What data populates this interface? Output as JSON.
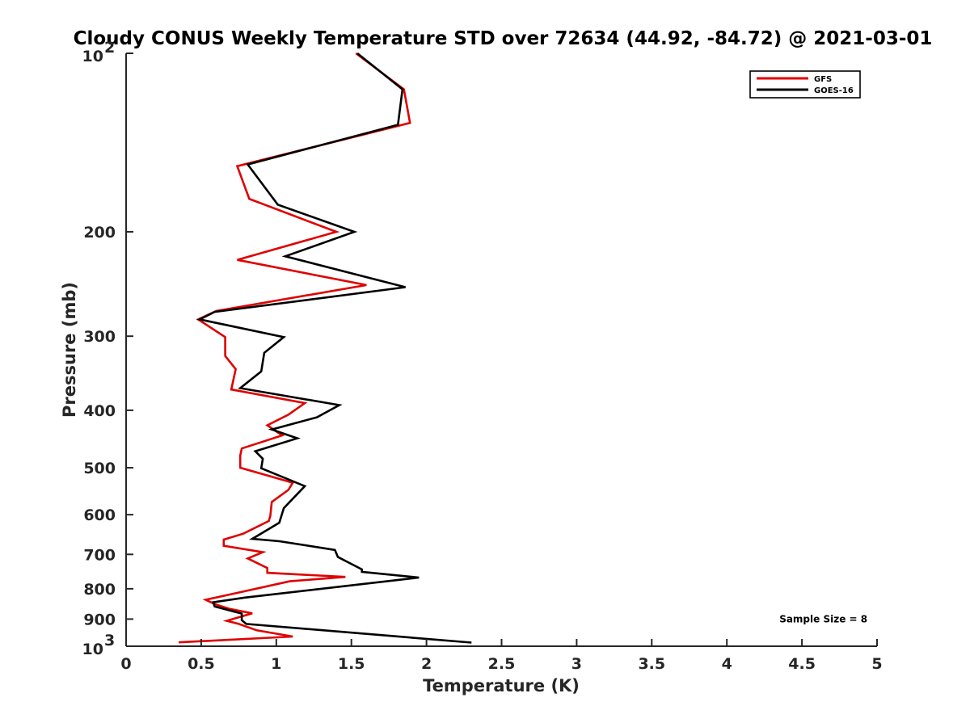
{
  "chart_data": {
    "type": "line",
    "title": "Cloudy CONUS Weekly Temperature STD over 72634 (44.92, -84.72) @ 2021-03-01",
    "xlabel": "Temperature (K)",
    "ylabel": "Pressure (mb)",
    "xlim": [
      0,
      5
    ],
    "ylim": [
      100,
      1000
    ],
    "y_scale": "log",
    "y_reversed": true,
    "x_ticks": [
      0,
      0.5,
      1,
      1.5,
      2,
      2.5,
      3,
      3.5,
      4,
      4.5,
      5
    ],
    "x_tick_labels": [
      "0",
      "0.5",
      "1",
      "1.5",
      "2",
      "2.5",
      "3",
      "3.5",
      "4",
      "4.5",
      "5"
    ],
    "y_ticks": [
      200,
      300,
      400,
      500,
      600,
      700,
      800,
      900
    ],
    "y_tick_labels": [
      "200",
      "300",
      "400",
      "500",
      "600",
      "700",
      "800",
      "900"
    ],
    "y_end_labels": [
      {
        "value": 100,
        "base": "10",
        "exp": "2"
      },
      {
        "value": 1000,
        "base": "10",
        "exp": "3"
      }
    ],
    "grid": false,
    "legend_position": "top-right",
    "series": [
      {
        "name": "GFS",
        "color": "#e00000",
        "points": [
          [
            1.53,
            100
          ],
          [
            1.85,
            115
          ],
          [
            1.89,
            131
          ],
          [
            0.74,
            155
          ],
          [
            0.82,
            176
          ],
          [
            1.4,
            200
          ],
          [
            0.74,
            223
          ],
          [
            1.6,
            246
          ],
          [
            0.6,
            272
          ],
          [
            0.48,
            281
          ],
          [
            0.66,
            301
          ],
          [
            0.66,
            324
          ],
          [
            0.73,
            341
          ],
          [
            0.7,
            369
          ],
          [
            1.19,
            389
          ],
          [
            1.08,
            407
          ],
          [
            0.94,
            424
          ],
          [
            1.04,
            441
          ],
          [
            0.77,
            464
          ],
          [
            0.76,
            477
          ],
          [
            0.76,
            500
          ],
          [
            1.11,
            530
          ],
          [
            1.08,
            545
          ],
          [
            0.97,
            571
          ],
          [
            0.96,
            603
          ],
          [
            0.95,
            615
          ],
          [
            0.78,
            646
          ],
          [
            0.65,
            661
          ],
          [
            0.65,
            677
          ],
          [
            0.91,
            694
          ],
          [
            0.81,
            711
          ],
          [
            0.94,
            738
          ],
          [
            0.94,
            752
          ],
          [
            1.46,
            764
          ],
          [
            1.09,
            777
          ],
          [
            0.73,
            814
          ],
          [
            0.53,
            835
          ],
          [
            0.59,
            849
          ],
          [
            0.69,
            865
          ],
          [
            0.84,
            880
          ],
          [
            0.67,
            906
          ],
          [
            0.75,
            917
          ],
          [
            0.87,
            940
          ],
          [
            1.11,
            963
          ],
          [
            0.35,
            985
          ]
        ]
      },
      {
        "name": "GOES-16",
        "color": "#000000",
        "points": [
          [
            1.54,
            100
          ],
          [
            1.84,
            115
          ],
          [
            1.81,
            132
          ],
          [
            0.81,
            154
          ],
          [
            1.01,
            180
          ],
          [
            1.52,
            200
          ],
          [
            1.06,
            220
          ],
          [
            1.86,
            248
          ],
          [
            0.59,
            273
          ],
          [
            0.49,
            281
          ],
          [
            1.05,
            301
          ],
          [
            0.92,
            320
          ],
          [
            0.9,
            344
          ],
          [
            0.76,
            367
          ],
          [
            1.42,
            392
          ],
          [
            1.27,
            411
          ],
          [
            0.97,
            431
          ],
          [
            1.14,
            446
          ],
          [
            0.86,
            469
          ],
          [
            0.91,
            483
          ],
          [
            0.9,
            501
          ],
          [
            1.19,
            537
          ],
          [
            1.05,
            585
          ],
          [
            1.02,
            619
          ],
          [
            0.84,
            659
          ],
          [
            1.02,
            665
          ],
          [
            1.39,
            688
          ],
          [
            1.41,
            707
          ],
          [
            1.57,
            742
          ],
          [
            1.57,
            749
          ],
          [
            1.95,
            766
          ],
          [
            0.79,
            828
          ],
          [
            0.58,
            843
          ],
          [
            0.59,
            857
          ],
          [
            0.77,
            881
          ],
          [
            0.77,
            904
          ],
          [
            0.8,
            917
          ],
          [
            2.3,
            986
          ]
        ]
      }
    ],
    "annotations": [
      {
        "text": "Sample Size = 8",
        "x": 4.35,
        "y": 900
      }
    ]
  }
}
